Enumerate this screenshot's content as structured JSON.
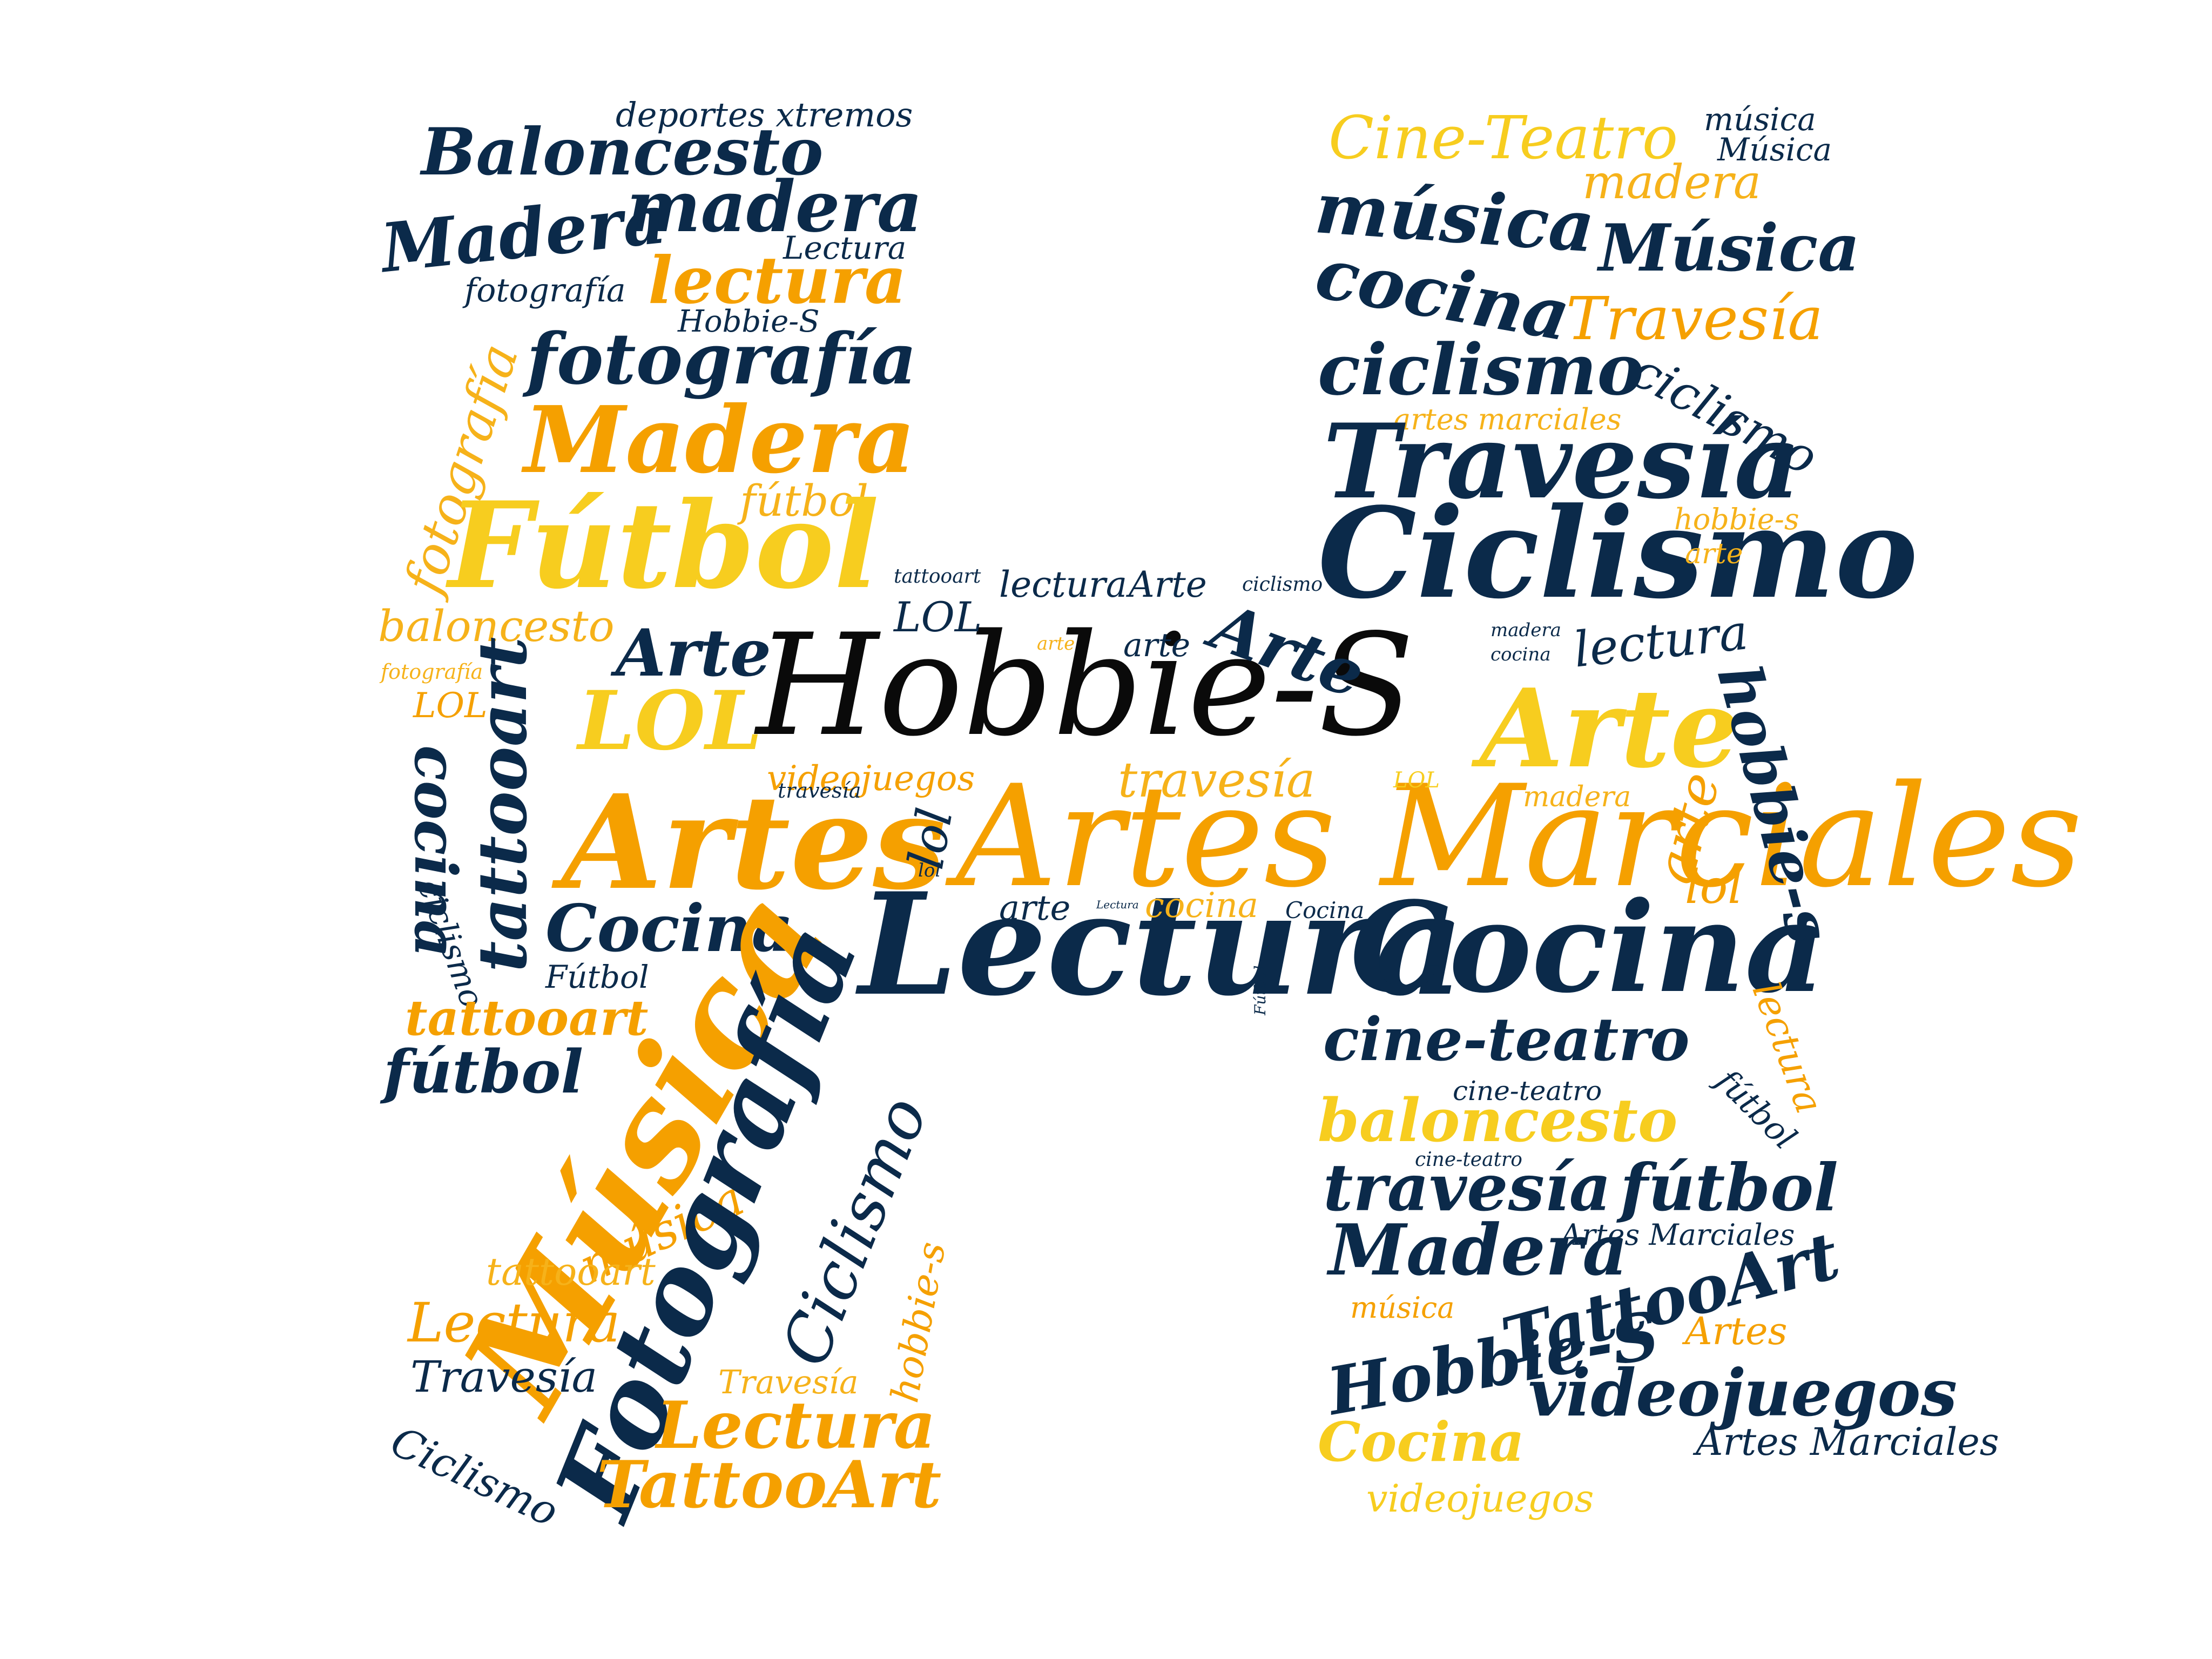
{
  "colors": {
    "navy": "#0b2a4a",
    "orange": "#f5a000",
    "yellow": "#f7cd1f",
    "gold": "#f6b21a",
    "black": "#0a0a0a",
    "background": "#ffffff"
  },
  "words": [
    "deportes xtremos",
    "Baloncesto",
    "madera",
    "Madera",
    "Lectura",
    "lectura",
    "fotografía",
    "Hobbie-S",
    "fotografía",
    "fotografía",
    "Madera",
    "fútbol",
    "Fútbol",
    "baloncesto",
    "fotografía",
    "LOL",
    "tattooart",
    "cocina",
    "ciclismo",
    "LOL",
    "Arte",
    "Artes",
    "Cocina",
    "Fútbol",
    "tattooart",
    "fútbol",
    "Música",
    "música",
    "tattooart",
    "Lectura",
    "Travesía",
    "Ciclismo",
    "Fotografía",
    "Ciclismo",
    "hobbie-s",
    "Travesía",
    "Lectura",
    "TattooArt",
    "lol",
    "Hobbie-S",
    "Artes Marciales",
    "Lectura",
    "Cocina",
    "travesía",
    "videojuegos",
    "travesía",
    "arte",
    "Lectura",
    "cocina",
    "Cocina",
    "lol",
    "arte",
    "tattooart",
    "lectura",
    "Arte",
    "ciclismo",
    "LOL",
    "arte",
    "Arte",
    "LOL",
    "madera",
    "Cine-Teatro",
    "música",
    "Música",
    "madera",
    "música",
    "Música",
    "cocina",
    "Travesía",
    "ciclismo",
    "ciclismo",
    "artes marciales",
    "Travesía",
    "hobbie-s",
    "Ciclismo",
    "arte",
    "madera",
    "cocina",
    "lectura",
    "Arte",
    "hobbie-s",
    "arte",
    "lol",
    "cine-teatro",
    "lectura",
    "cine-teatro",
    "fútbol",
    "baloncesto",
    "cine-teatro",
    "travesía",
    "Fútbol",
    "fútbol",
    "Madera",
    "Artes Marciales",
    "TattooArt",
    "música",
    "Artes",
    "Hobbie-S",
    "videojuegos",
    "Cocina",
    "Artes Marciales",
    "videojuegos",
    "Hobbie-S",
    "Lectura"
  ]
}
